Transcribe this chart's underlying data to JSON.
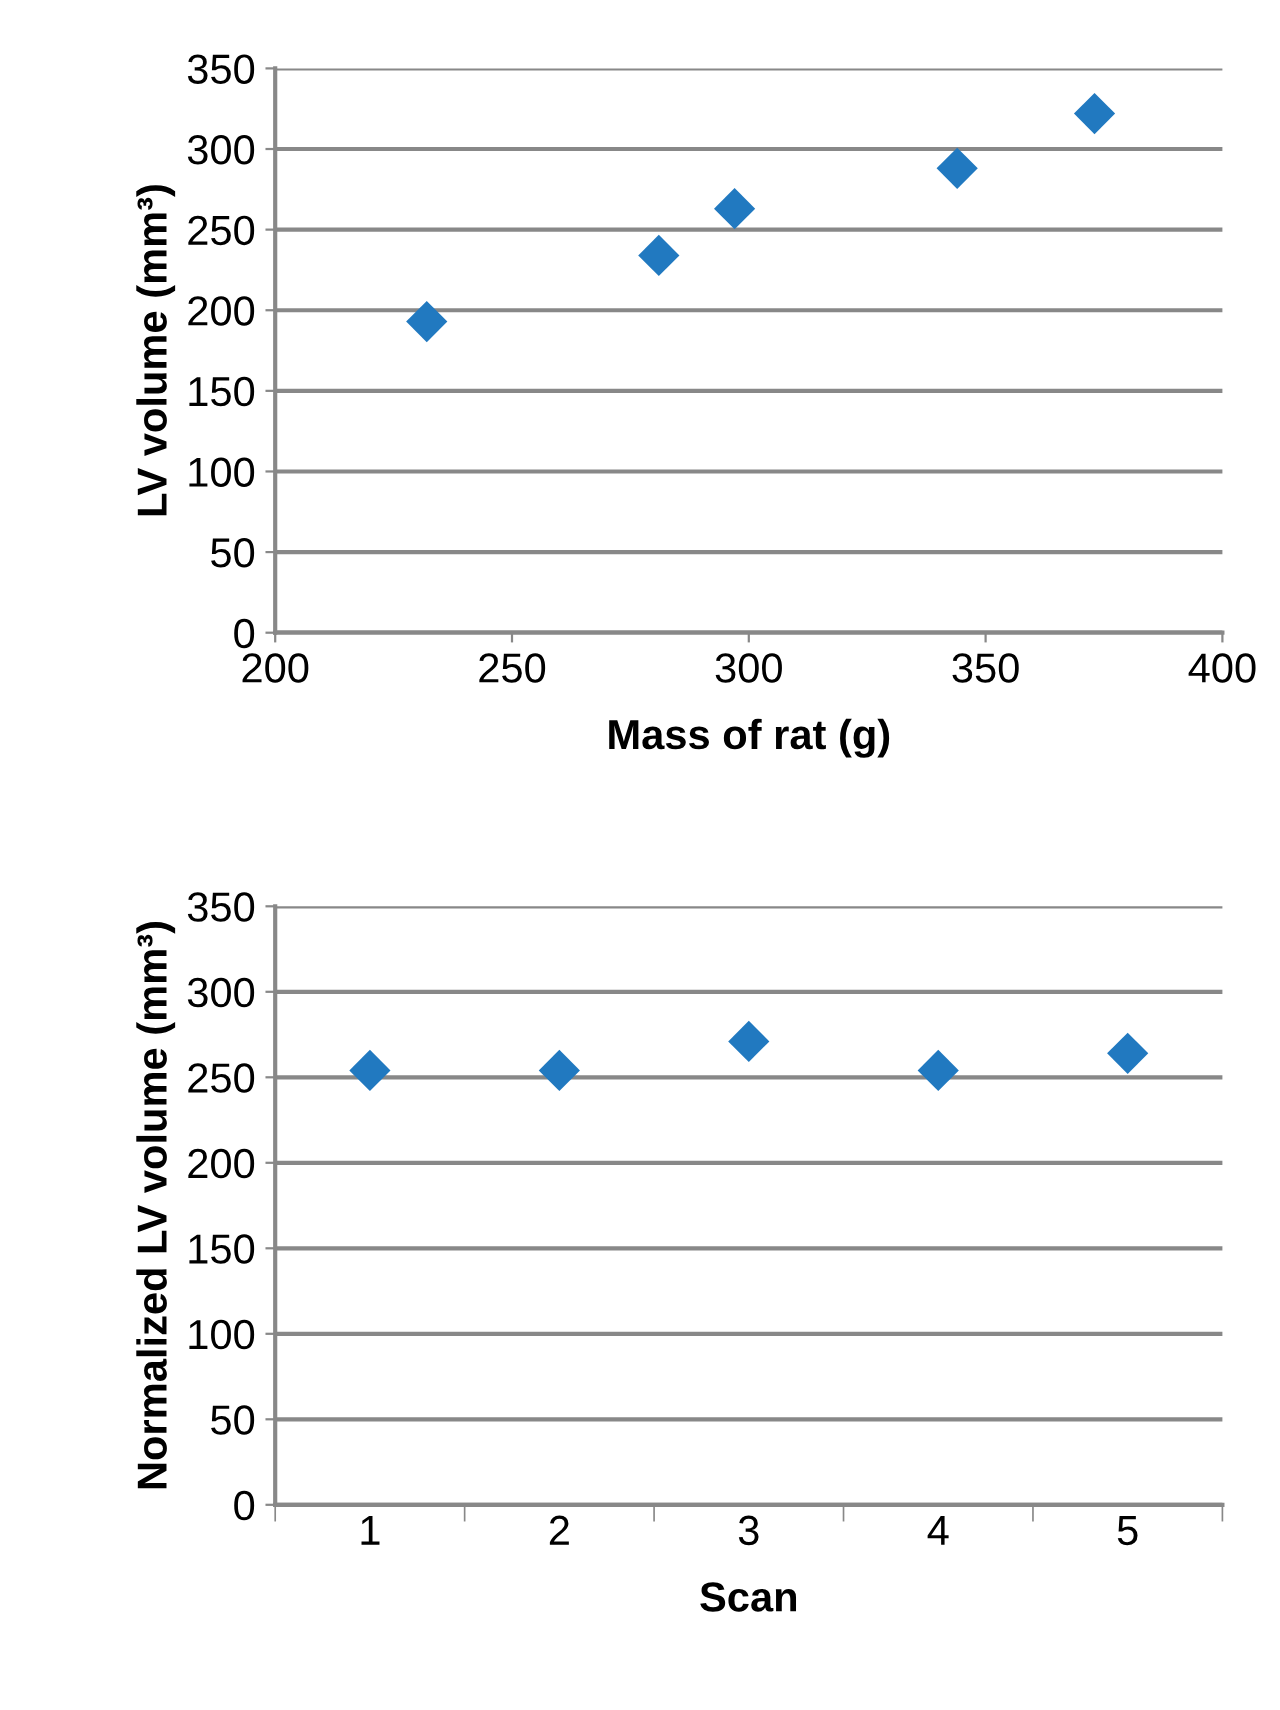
{
  "chart_data": [
    {
      "type": "scatter",
      "xlabel": "Mass of rat (g)",
      "ylabel": "LV volume (mm³)",
      "x": [
        232,
        281,
        297,
        344,
        373
      ],
      "series": [
        {
          "color": "#2179c0",
          "values": [
            193,
            234,
            263,
            288,
            322
          ]
        }
      ],
      "xlim": [
        200,
        400
      ],
      "xticks": [
        200,
        250,
        300,
        350,
        400
      ],
      "ylim": [
        0,
        350
      ],
      "yticks": [
        0,
        50,
        100,
        150,
        200,
        250,
        300,
        350
      ],
      "grid": "y",
      "marker": "diamond"
    },
    {
      "type": "scatter",
      "xlabel": "Scan",
      "ylabel": "Normalized LV volume (mm³)",
      "categories": [
        "1",
        "2",
        "3",
        "4",
        "5"
      ],
      "series": [
        {
          "color": "#2179c0",
          "values": [
            254,
            254,
            271,
            254,
            264
          ]
        }
      ],
      "ylim": [
        0,
        350
      ],
      "yticks": [
        0,
        50,
        100,
        150,
        200,
        250,
        300,
        350
      ],
      "grid": "y",
      "marker": "diamond"
    }
  ]
}
